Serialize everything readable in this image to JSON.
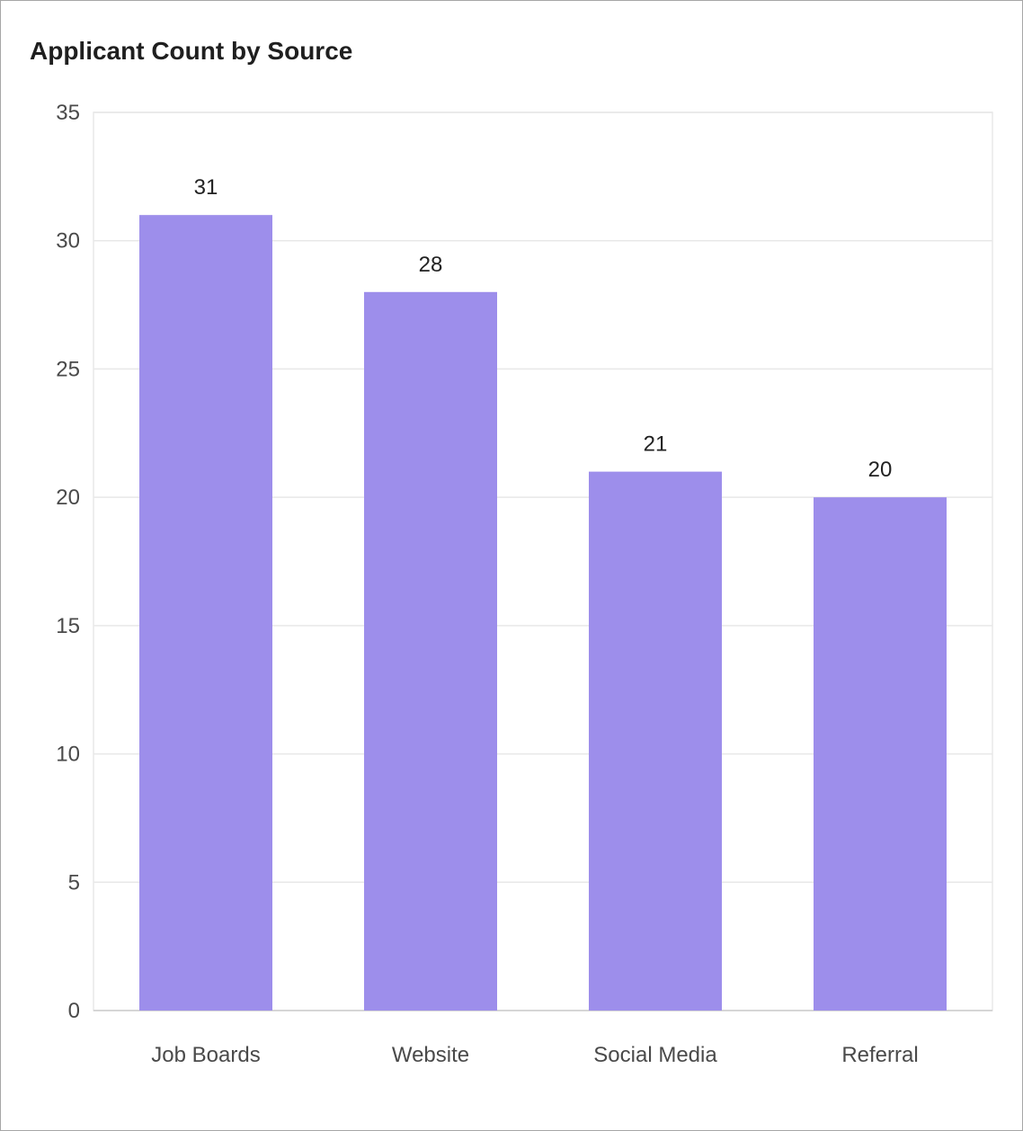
{
  "chart_data": {
    "type": "bar",
    "title": "Applicant Count by Source",
    "categories": [
      "Job Boards",
      "Website",
      "Social Media",
      "Referral"
    ],
    "values": [
      31,
      28,
      21,
      20
    ],
    "ylim": [
      0,
      35
    ],
    "yticks": [
      0,
      5,
      10,
      15,
      20,
      25,
      30,
      35
    ],
    "xlabel": "",
    "ylabel": "",
    "grid": true,
    "legend": "none",
    "colors": {
      "bar": "#9d8eeb",
      "grid": "#e8e8e8",
      "axis": "#d6d6d6"
    }
  }
}
